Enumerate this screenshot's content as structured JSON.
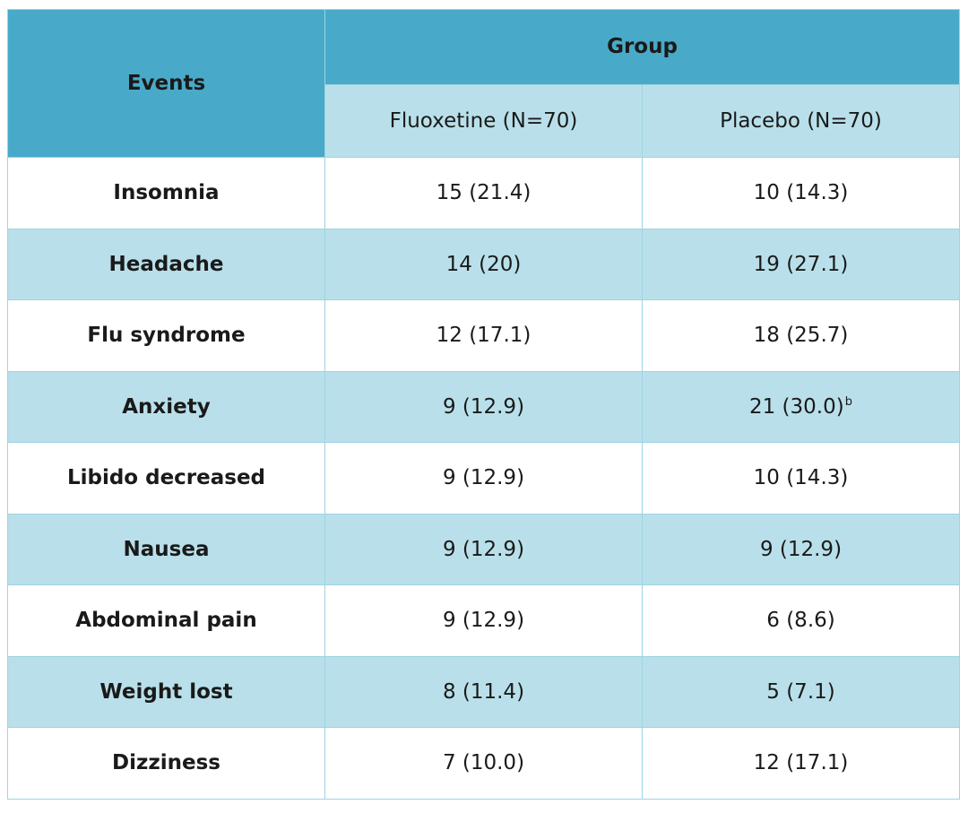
{
  "table": {
    "header": {
      "events": "Events",
      "group": "Group",
      "arm1": "Fluoxetine (N=70)",
      "arm2": "Placebo (N=70)"
    },
    "rows": [
      {
        "event": "Insomnia",
        "fluoxetine": "15 (21.4)",
        "placebo": "10 (14.3)",
        "placebo_sup": ""
      },
      {
        "event": "Headache",
        "fluoxetine": "14 (20)",
        "placebo": "19 (27.1)",
        "placebo_sup": ""
      },
      {
        "event": "Flu syndrome",
        "fluoxetine": "12 (17.1)",
        "placebo": "18 (25.7)",
        "placebo_sup": ""
      },
      {
        "event": "Anxiety",
        "fluoxetine": "9 (12.9)",
        "placebo": "21 (30.0)",
        "placebo_sup": "b"
      },
      {
        "event": "Libido decreased",
        "fluoxetine": "9 (12.9)",
        "placebo": "10 (14.3)",
        "placebo_sup": ""
      },
      {
        "event": "Nausea",
        "fluoxetine": "9 (12.9)",
        "placebo": "9 (12.9)",
        "placebo_sup": ""
      },
      {
        "event": "Abdominal pain",
        "fluoxetine": "9 (12.9)",
        "placebo": "6 (8.6)",
        "placebo_sup": ""
      },
      {
        "event": "Weight lost",
        "fluoxetine": "8 (11.4)",
        "placebo": "5 (7.1)",
        "placebo_sup": ""
      },
      {
        "event": "Dizziness",
        "fluoxetine": "7 (10.0)",
        "placebo": "12 (17.1)",
        "placebo_sup": ""
      }
    ]
  }
}
